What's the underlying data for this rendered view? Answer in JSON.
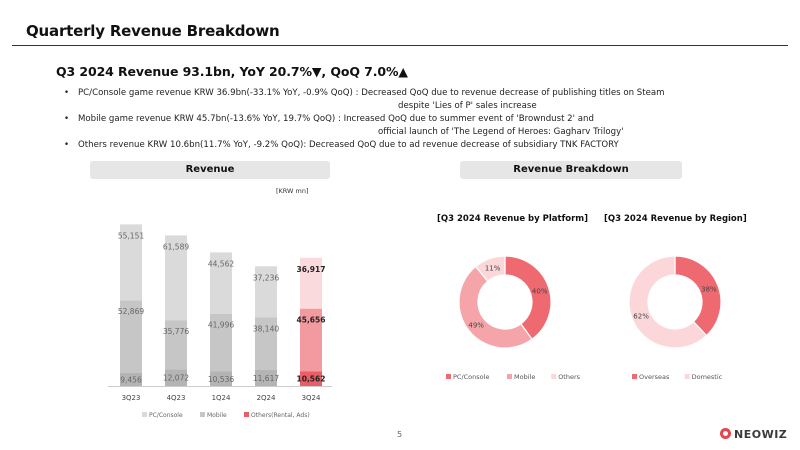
{
  "page": {
    "title": "Quarterly Revenue Breakdown",
    "headline": "Q3 2024 Revenue 93.1bn, YoY 20.7%▼, QoQ 7.0%▲",
    "bullets": [
      {
        "line1": "PC/Console game revenue KRW 36.9bn(-33.1% YoY, -0.9% QoQ) : Decreased QoQ due to revenue decrease of publishing titles on Steam",
        "line2": "despite 'Lies of P' sales increase"
      },
      {
        "line1": "Mobile game revenue KRW 45.7bn(-13.6% YoY, 19.7% QoQ) : Increased QoQ due to summer event of 'Browndust 2' and",
        "line2": "official launch of 'The Legend of Heroes: Gagharv Trilogy'"
      },
      {
        "line1": "Others revenue KRW 10.6bn(11.7% YoY, -9.2% QoQ): Decreased QoQ due to ad revenue decrease of subsidiary TNK FACTORY",
        "line2": ""
      }
    ],
    "revenue_header": "Revenue",
    "breakdown_header": "Revenue Breakdown",
    "unit": "[KRW mn]",
    "page_number": "5",
    "logo_text": "NEOWIZ"
  },
  "chart_data": [
    {
      "type": "bar",
      "stacked": true,
      "categories": [
        "3Q23",
        "4Q23",
        "1Q24",
        "2Q24",
        "3Q24"
      ],
      "series": [
        {
          "name": "Others(Rental, Ads)",
          "values": [
            9456,
            12072,
            10536,
            11617,
            10562
          ]
        },
        {
          "name": "Mobile",
          "values": [
            52869,
            35776,
            41996,
            38140,
            45656
          ]
        },
        {
          "name": "PC/Console",
          "values": [
            55151,
            61589,
            44562,
            37236,
            36917
          ]
        }
      ],
      "value_labels": [
        [
          "9,456",
          "12,072",
          "10,536",
          "11,617",
          "10,562"
        ],
        [
          "52,869",
          "35,776",
          "41,996",
          "38,140",
          "45,656"
        ],
        [
          "55,151",
          "61,589",
          "44,562",
          "37,236",
          "36,917"
        ]
      ],
      "legend_order": [
        "PC/Console",
        "Mobile",
        "Others(Rental, Ads)"
      ],
      "legend": "bottom",
      "highlight_category": "3Q24",
      "colors": {
        "base": [
          "#b4b4b4",
          "#c6c6c6",
          "#dadada"
        ],
        "highlight": [
          "#eb5e65",
          "#f29a9f",
          "#fadadc"
        ]
      },
      "ylim": [
        0,
        125000
      ]
    },
    {
      "type": "pie",
      "donut": true,
      "title": "[Q3 2024 Revenue by Platform]",
      "labels": [
        "PC/Console",
        "Mobile",
        "Others"
      ],
      "values": [
        40,
        49,
        11
      ],
      "value_labels": [
        "40%",
        "49%",
        "11%"
      ],
      "colors": [
        "#ee6a70",
        "#f5a5a9",
        "#fbd7d9"
      ],
      "legend": "bottom"
    },
    {
      "type": "pie",
      "donut": true,
      "title": "[Q3 2024 Revenue by Region]",
      "labels": [
        "Overseas",
        "Domestic"
      ],
      "values": [
        38,
        62
      ],
      "value_labels": [
        "38%",
        "62%"
      ],
      "colors": [
        "#ee6a70",
        "#fbd7d9"
      ],
      "legend": "bottom"
    }
  ]
}
